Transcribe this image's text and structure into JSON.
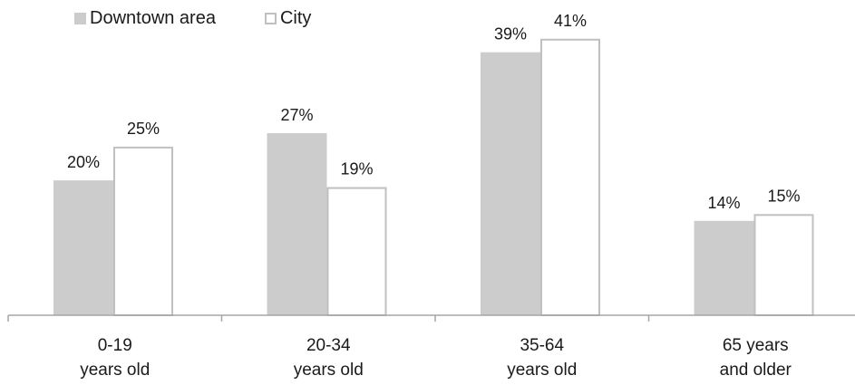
{
  "chart_data": {
    "type": "bar",
    "categories": [
      [
        "0-19",
        "years old"
      ],
      [
        "20-34",
        "years old"
      ],
      [
        "35-64",
        "years old"
      ],
      [
        "65 years",
        "and older"
      ]
    ],
    "series": [
      {
        "name": "Downtown area",
        "values": [
          20,
          27,
          39,
          14
        ],
        "labels": [
          "20%",
          "27%",
          "39%",
          "14%"
        ],
        "fill": "#cccccc",
        "stroke": "#cccccc"
      },
      {
        "name": "City",
        "values": [
          25,
          19,
          41,
          15
        ],
        "labels": [
          "25%",
          "19%",
          "41%",
          "15%"
        ],
        "fill": "#ffffff",
        "stroke": "#c0c0c0"
      }
    ],
    "ylim": [
      0,
      45
    ],
    "legend_position": "top-left",
    "grid": false,
    "axis_color": "#a6a6a6"
  }
}
